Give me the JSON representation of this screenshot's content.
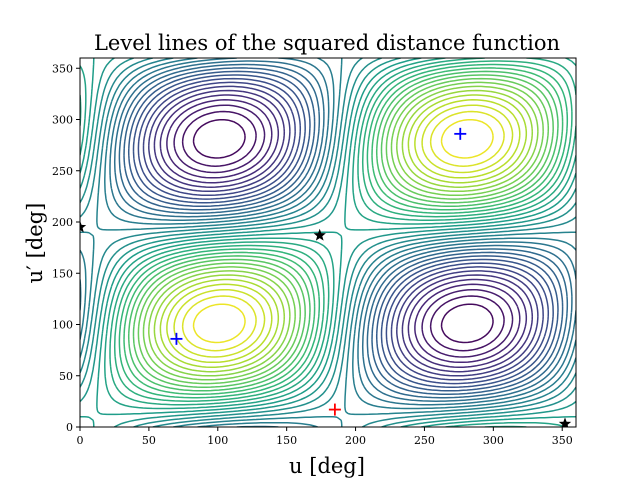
{
  "chart_data": {
    "type": "contour",
    "title": "Level lines of the squared distance function",
    "xlabel": "u [deg]",
    "ylabel": "u′ [deg]",
    "xlim": [
      0,
      360
    ],
    "ylim": [
      0,
      360
    ],
    "xticks": [
      "0",
      "50",
      "100",
      "150",
      "200",
      "250",
      "300",
      "350"
    ],
    "yticks": [
      "0",
      "50",
      "100",
      "150",
      "200",
      "250",
      "300",
      "350"
    ],
    "grid": false,
    "colormap": "viridis",
    "markers": {
      "stars": [
        [
          0,
          195
        ],
        [
          174,
          187
        ],
        [
          352,
          3
        ]
      ],
      "blue_crosses": [
        [
          70,
          86
        ],
        [
          276,
          286
        ]
      ],
      "red_crosses": [
        [
          185,
          17
        ]
      ]
    },
    "colors": {
      "star": "#000000",
      "blue_cross": "#0000ff",
      "red_cross": "#ff0000"
    }
  }
}
